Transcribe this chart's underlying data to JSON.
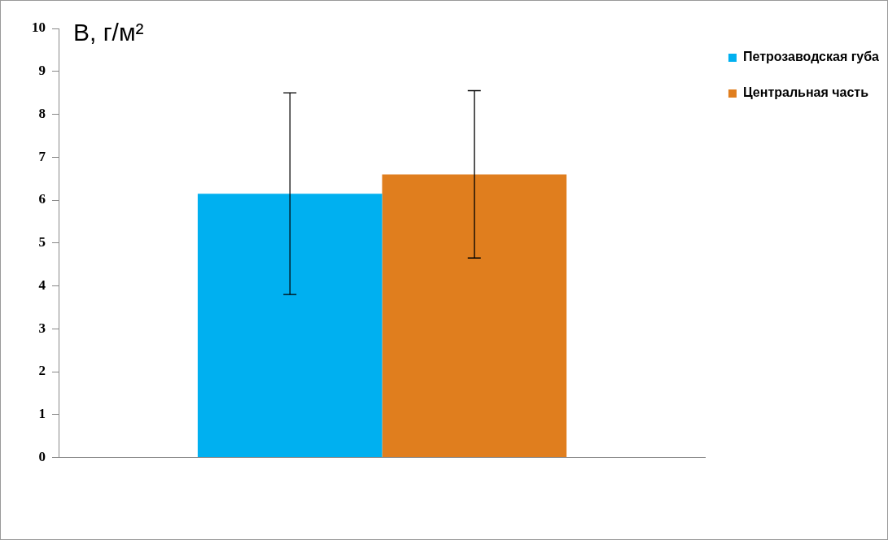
{
  "chart_data": {
    "type": "bar",
    "ylabel": "B, г/м²",
    "categories": [
      null
    ],
    "series": [
      {
        "name": "Петрозаводская губа",
        "color": "#00b0f0",
        "values": [
          6.15
        ],
        "errors": [
          2.35
        ]
      },
      {
        "name": "Центральная часть",
        "color": "#e07e1e",
        "values": [
          6.6
        ],
        "errors": [
          1.95
        ]
      }
    ],
    "ylim": [
      0,
      10
    ],
    "yticks": [
      0,
      1,
      2,
      3,
      4,
      5,
      6,
      7,
      8,
      9,
      10
    ],
    "grid": false,
    "legend": "top right"
  }
}
